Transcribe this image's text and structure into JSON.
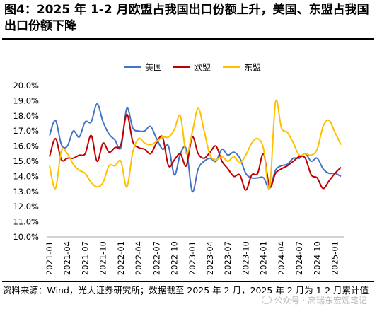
{
  "figure": {
    "title": "图4：2025 年 1-2 月欧盟占我国出口份额上升，美国、东盟占我国出口份额下降",
    "source": "资料来源：Wind，光大证券研究所；数据截至 2025 年 2 月，2025 年 2 月为 1-2 月累计值",
    "watermark": "公众号 · 高瑞东宏观笔记"
  },
  "chart_data": {
    "type": "line",
    "title": "",
    "xlabel": "",
    "ylabel": "",
    "ylim": [
      10,
      20
    ],
    "y_ticks": [
      "10.0%",
      "11.0%",
      "12.0%",
      "13.0%",
      "14.0%",
      "15.0%",
      "16.0%",
      "17.0%",
      "18.0%",
      "19.0%",
      "20.0%"
    ],
    "grid": false,
    "legend_position": "top-center",
    "x_tick_labels": [
      "2021-01",
      "2021-04",
      "2021-07",
      "2021-10",
      "2022-01",
      "2022-04",
      "2022-07",
      "2022-10",
      "2023-01",
      "2023-04",
      "2023-07",
      "2023-10",
      "2024-01",
      "2024-04",
      "2024-07",
      "2024-10",
      "2025-01"
    ],
    "x": [
      "2021-01",
      "2021-02",
      "2021-03",
      "2021-04",
      "2021-05",
      "2021-06",
      "2021-07",
      "2021-08",
      "2021-09",
      "2021-10",
      "2021-11",
      "2021-12",
      "2022-01",
      "2022-02",
      "2022-03",
      "2022-04",
      "2022-05",
      "2022-06",
      "2022-07",
      "2022-08",
      "2022-09",
      "2022-10",
      "2022-11",
      "2022-12",
      "2023-01",
      "2023-02",
      "2023-03",
      "2023-04",
      "2023-05",
      "2023-06",
      "2023-07",
      "2023-08",
      "2023-09",
      "2023-10",
      "2023-11",
      "2023-12",
      "2024-01",
      "2024-02",
      "2024-03",
      "2024-04",
      "2024-05",
      "2024-06",
      "2024-07",
      "2024-08",
      "2024-09",
      "2024-10",
      "2024-11",
      "2024-12",
      "2025-01",
      "2025-02"
    ],
    "series": [
      {
        "name": "美国",
        "color": "#4472C4",
        "values": [
          16.7,
          17.7,
          16.1,
          16.0,
          17.0,
          16.6,
          17.6,
          17.6,
          18.8,
          17.6,
          16.8,
          16.4,
          15.9,
          18.5,
          17.2,
          17.0,
          17.0,
          17.3,
          16.5,
          15.8,
          16.0,
          14.1,
          15.5,
          15.8,
          13.0,
          14.5,
          15.0,
          15.2,
          15.0,
          15.8,
          15.4,
          15.6,
          15.2,
          14.2,
          13.9,
          13.9,
          13.9,
          13.2,
          14.4,
          14.7,
          14.8,
          15.2,
          15.2,
          15.5,
          15.0,
          15.2,
          14.5,
          14.2,
          14.2,
          14.0
        ]
      },
      {
        "name": "欧盟",
        "color": "#C00000",
        "values": [
          15.3,
          16.5,
          15.1,
          15.2,
          15.2,
          15.4,
          15.5,
          16.7,
          15.0,
          16.2,
          15.6,
          15.9,
          16.1,
          18.1,
          16.3,
          15.9,
          15.8,
          15.5,
          16.2,
          16.6,
          14.7,
          15.1,
          15.5,
          14.7,
          16.6,
          15.5,
          15.2,
          15.6,
          16.0,
          15.0,
          14.5,
          14.0,
          14.1,
          13.1,
          14.1,
          14.2,
          15.5,
          13.3,
          14.2,
          14.5,
          14.7,
          15.0,
          15.3,
          15.2,
          14.1,
          13.9,
          13.2,
          13.7,
          14.2,
          14.6
        ]
      },
      {
        "name": "东盟",
        "color": "#FFC000",
        "values": [
          14.7,
          13.2,
          15.7,
          15.5,
          14.8,
          14.4,
          14.2,
          13.6,
          13.3,
          13.6,
          14.7,
          14.7,
          15.0,
          13.3,
          15.6,
          16.5,
          16.2,
          16.1,
          16.3,
          16.6,
          16.6,
          17.1,
          18.0,
          15.5,
          16.9,
          18.5,
          17.0,
          15.4,
          15.1,
          15.3,
          15.0,
          15.3,
          14.9,
          15.4,
          16.2,
          16.5,
          15.8,
          13.2,
          18.9,
          17.2,
          16.9,
          16.2,
          15.4,
          15.5,
          15.4,
          15.8,
          17.3,
          17.7,
          16.9,
          16.1
        ]
      }
    ]
  }
}
